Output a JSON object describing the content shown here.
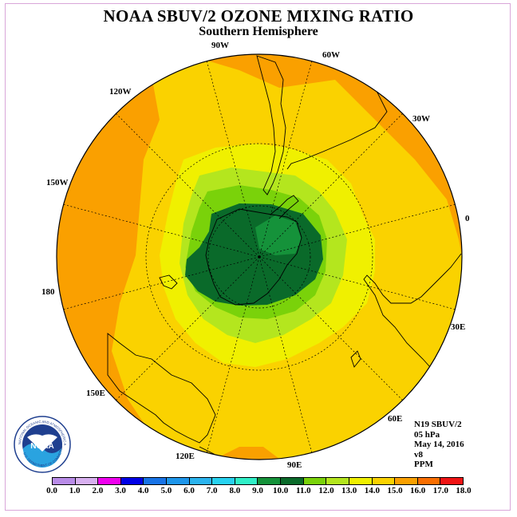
{
  "title": "NOAA SBUV/2 OZONE MIXING RATIO",
  "subtitle": "Southern Hemisphere",
  "longitude_labels": [
    {
      "text": "90W"
    },
    {
      "text": "60W"
    },
    {
      "text": "30W"
    },
    {
      "text": "0"
    },
    {
      "text": "30E"
    },
    {
      "text": "60E"
    },
    {
      "text": "90E"
    },
    {
      "text": "120E"
    },
    {
      "text": "150E"
    },
    {
      "text": "180"
    },
    {
      "text": "150W"
    },
    {
      "text": "120W"
    }
  ],
  "info": {
    "instrument": "N19 SBUV/2",
    "level": "05 hPa",
    "date": "May 14, 2016",
    "version": "v8",
    "units": "PPM"
  },
  "logo": {
    "text": "NOAA",
    "ring_text": "NATIONAL OCEANIC AND ATMOSPHERIC ADMINISTRATION",
    "ring_text_bottom": "U.S. DEPARTMENT OF COMMERCE",
    "icon": "noaa-seal-icon"
  },
  "colorbar": {
    "labels": [
      "0.0",
      "1.0",
      "2.0",
      "3.0",
      "4.0",
      "5.0",
      "6.0",
      "7.0",
      "8.0",
      "9.0",
      "10.0",
      "11.0",
      "12.0",
      "13.0",
      "14.0",
      "15.0",
      "16.0",
      "17.0",
      "18.0"
    ],
    "colors": [
      "#b98ce8",
      "#d8b0f0",
      "#f000f0",
      "#0000e6",
      "#1873e6",
      "#1e96eb",
      "#2bb4ef",
      "#28d2f0",
      "#30f0c8",
      "#15923a",
      "#0a6a2a",
      "#7ad20a",
      "#b4e61e",
      "#f0f000",
      "#fad200",
      "#faa000",
      "#fa6e00",
      "#f01414",
      "#8b5a2b"
    ],
    "contour_colors": {
      "14.5": "#faa000",
      "13.5": "#fad200",
      "12.5": "#f0f000",
      "11.5": "#b4e61e",
      "11.0": "#7ad20a",
      "10.0": "#0a6a2a",
      "9.5": "#15923a"
    }
  }
}
